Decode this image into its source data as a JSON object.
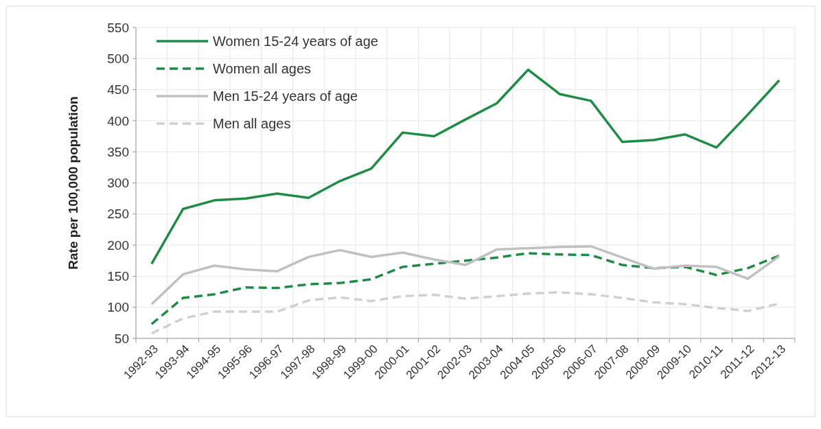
{
  "chart_data": {
    "type": "line",
    "ylabel": "Rate per 100,000 population",
    "categories": [
      "1992-93",
      "1993-94",
      "1994-95",
      "1995-96",
      "1996-97",
      "1997-98",
      "1998-99",
      "1999-00",
      "2000-01",
      "2001-02",
      "2002-03",
      "2003-04",
      "2004-05",
      "2005-06",
      "2006-07",
      "2007-08",
      "2008-09",
      "2009-10",
      "2010-11",
      "2011-12",
      "2012-13"
    ],
    "series": [
      {
        "name": "Women 15-24 years of age",
        "color": "#1e8c45",
        "line_style": "solid",
        "values": [
          170,
          258,
          272,
          275,
          283,
          276,
          303,
          323,
          381,
          375,
          402,
          428,
          482,
          443,
          432,
          366,
          369,
          378,
          357,
          410,
          465
        ]
      },
      {
        "name": "Women all ages",
        "color": "#1e8c45",
        "line_style": "dashed",
        "values": [
          73,
          115,
          121,
          132,
          131,
          137,
          139,
          145,
          165,
          170,
          175,
          180,
          187,
          185,
          184,
          168,
          163,
          165,
          152,
          163,
          183
        ]
      },
      {
        "name": "Men 15-24 years of age",
        "color": "#c0c0c0",
        "line_style": "solid",
        "values": [
          105,
          153,
          167,
          161,
          158,
          181,
          192,
          181,
          188,
          177,
          168,
          193,
          195,
          197,
          198,
          180,
          162,
          167,
          165,
          146,
          182
        ]
      },
      {
        "name": "Men all ages",
        "color": "#d0d0d0",
        "line_style": "dashed",
        "values": [
          58,
          82,
          93,
          93,
          93,
          111,
          116,
          110,
          118,
          120,
          114,
          118,
          122,
          124,
          121,
          115,
          108,
          105,
          99,
          94,
          106
        ]
      }
    ],
    "ylim": [
      50,
      550
    ],
    "yticks": [
      50,
      100,
      150,
      200,
      250,
      300,
      350,
      400,
      450,
      500,
      550
    ],
    "grid": true,
    "legend": "top left",
    "marker": "none"
  }
}
